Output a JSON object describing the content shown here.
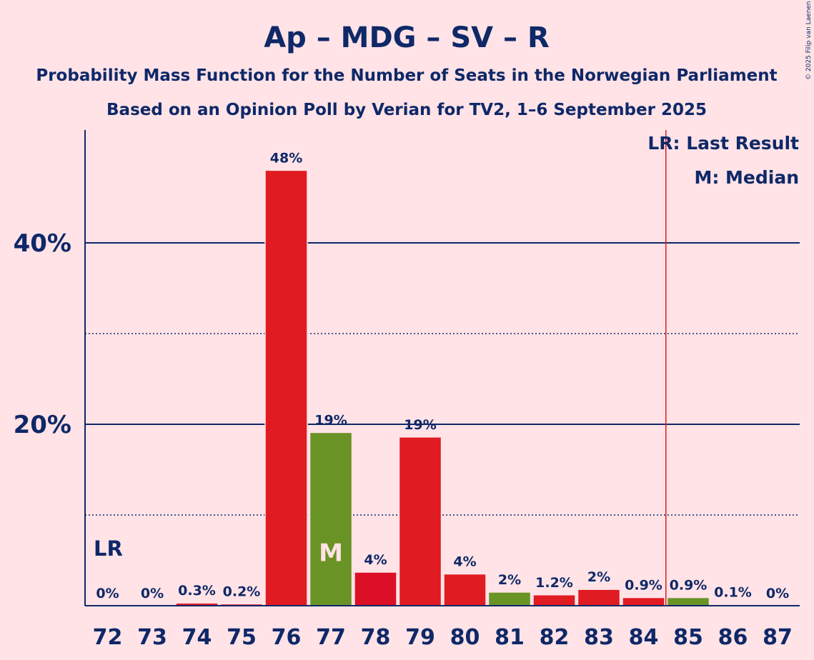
{
  "title": "Ap – MDG – SV – R",
  "subtitle1": "Probability Mass Function for the Number of Seats in the Norwegian Parliament",
  "subtitle2": "Based on an Opinion Poll by Verian for TV2, 1–6 September 2025",
  "copyright": "© 2025 Filip van Laenen",
  "legend": {
    "lr": "LR: Last Result",
    "median": "M: Median"
  },
  "lr_label": "LR",
  "median_label": "M",
  "colors": {
    "background": "#FFE3E6",
    "text": "#0F2868",
    "red": "#E01B22",
    "green": "#6A9326",
    "marker_line": "#E01B22"
  },
  "chart_data": {
    "type": "bar",
    "categories": [
      "72",
      "73",
      "74",
      "75",
      "76",
      "77",
      "78",
      "79",
      "80",
      "81",
      "82",
      "83",
      "84",
      "85",
      "86",
      "87"
    ],
    "values": [
      0,
      0,
      0.3,
      0.2,
      48,
      19.1,
      3.7,
      18.6,
      3.5,
      1.5,
      1.2,
      1.8,
      0.9,
      0.9,
      0.1,
      0
    ],
    "labels": [
      "0%",
      "0%",
      "0.3%",
      "0.2%",
      "48%",
      "19%",
      "4%",
      "19%",
      "4%",
      "2%",
      "1.2%",
      "2%",
      "0.9%",
      "0.9%",
      "0.1%",
      "0%"
    ],
    "bar_colors": [
      "#E01B22",
      "#E01B22",
      "#E01B22",
      "#E01B22",
      "#E01B22",
      "#6A9326",
      "#DC0F26",
      "#E01B22",
      "#E01B22",
      "#6A9326",
      "#E01B22",
      "#E01B22",
      "#E01B22",
      "#6A9326",
      "#E01B22",
      "#E01B22"
    ],
    "ylim": [
      0,
      52
    ],
    "yticks": [
      20,
      40
    ],
    "ytick_labels": [
      "20%",
      "40%"
    ],
    "minor_gridlines": [
      10,
      30
    ],
    "last_result": "72",
    "median": "77",
    "majority_line_between": [
      "84",
      "85"
    ],
    "xlabel": "",
    "ylabel": ""
  }
}
